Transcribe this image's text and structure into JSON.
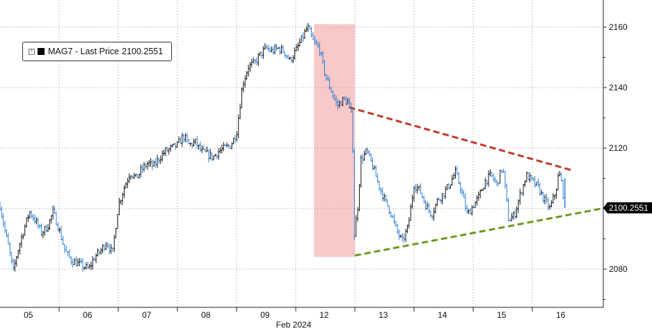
{
  "chart_data": {
    "type": "line",
    "series": [
      {
        "name": "MAG7 - Last Price"
      }
    ],
    "legend": {
      "name": "MAG7 - Last Price",
      "value": "2100.2551",
      "position": "top-left"
    },
    "last_price": 2100.2551,
    "last_price_label": "2100.2551",
    "ylim": [
      2065,
      2172
    ],
    "yticks": [
      2080,
      2100,
      2120,
      2140,
      2160
    ],
    "ytick_labels": [
      "2080",
      "2100",
      "2120",
      "2140",
      "2160"
    ],
    "x_range": [
      0,
      10.25
    ],
    "x_days": [
      {
        "label": "05",
        "start": 0
      },
      {
        "label": "06",
        "start": 1
      },
      {
        "label": "07",
        "start": 2
      },
      {
        "label": "08",
        "start": 3
      },
      {
        "label": "09",
        "start": 4
      },
      {
        "label": "12",
        "start": 5
      },
      {
        "label": "13",
        "start": 6
      },
      {
        "label": "14",
        "start": 7
      },
      {
        "label": "15",
        "start": 8
      },
      {
        "label": "16",
        "start": 9
      }
    ],
    "month_label": "Feb 2024",
    "grid": true,
    "highlight": {
      "x0": 5.31,
      "x1": 6.0,
      "color": "#f9c9c9"
    },
    "upper_trendline": {
      "x": [
        5.9,
        9.7
      ],
      "y": [
        2133.5,
        2112.5
      ],
      "color": "#c0392b"
    },
    "lower_trendline": {
      "x": [
        6.0,
        10.25
      ],
      "y": [
        2084.5,
        2100.3
      ],
      "color": "#6b9a1f"
    },
    "price_path": [
      [
        0.0,
        2101
      ],
      [
        0.08,
        2093
      ],
      [
        0.16,
        2086
      ],
      [
        0.22,
        2079
      ],
      [
        0.3,
        2086
      ],
      [
        0.4,
        2093
      ],
      [
        0.5,
        2099
      ],
      [
        0.6,
        2096
      ],
      [
        0.7,
        2092
      ],
      [
        0.8,
        2094
      ],
      [
        0.9,
        2099
      ],
      [
        1.0,
        2093
      ],
      [
        1.1,
        2086
      ],
      [
        1.2,
        2083
      ],
      [
        1.3,
        2082
      ],
      [
        1.4,
        2081
      ],
      [
        1.5,
        2080
      ],
      [
        1.6,
        2084
      ],
      [
        1.7,
        2086
      ],
      [
        1.8,
        2089
      ],
      [
        1.9,
        2085
      ],
      [
        2.0,
        2101
      ],
      [
        2.1,
        2107
      ],
      [
        2.2,
        2112
      ],
      [
        2.3,
        2110
      ],
      [
        2.4,
        2113
      ],
      [
        2.5,
        2115
      ],
      [
        2.6,
        2114
      ],
      [
        2.7,
        2117
      ],
      [
        2.8,
        2119
      ],
      [
        2.9,
        2120
      ],
      [
        3.0,
        2121
      ],
      [
        3.1,
        2124
      ],
      [
        3.2,
        2121
      ],
      [
        3.3,
        2122
      ],
      [
        3.4,
        2119
      ],
      [
        3.5,
        2118
      ],
      [
        3.6,
        2117
      ],
      [
        3.7,
        2119
      ],
      [
        3.8,
        2120
      ],
      [
        3.9,
        2121
      ],
      [
        4.0,
        2125
      ],
      [
        4.1,
        2141
      ],
      [
        4.2,
        2147
      ],
      [
        4.3,
        2148
      ],
      [
        4.4,
        2151
      ],
      [
        4.5,
        2153
      ],
      [
        4.6,
        2152
      ],
      [
        4.7,
        2153
      ],
      [
        4.8,
        2152
      ],
      [
        4.9,
        2149
      ],
      [
        5.0,
        2152
      ],
      [
        5.1,
        2156
      ],
      [
        5.2,
        2160
      ],
      [
        5.3,
        2155
      ],
      [
        5.4,
        2153
      ],
      [
        5.5,
        2144
      ],
      [
        5.6,
        2139
      ],
      [
        5.7,
        2134
      ],
      [
        5.8,
        2136
      ],
      [
        5.9,
        2135
      ],
      [
        5.96,
        2128
      ],
      [
        5.98,
        2089
      ],
      [
        6.0,
        2093
      ],
      [
        6.05,
        2101
      ],
      [
        6.1,
        2116
      ],
      [
        6.2,
        2119
      ],
      [
        6.3,
        2114
      ],
      [
        6.4,
        2108
      ],
      [
        6.5,
        2103
      ],
      [
        6.6,
        2099
      ],
      [
        6.7,
        2093
      ],
      [
        6.8,
        2089
      ],
      [
        6.9,
        2094
      ],
      [
        7.0,
        2108
      ],
      [
        7.1,
        2106
      ],
      [
        7.2,
        2101
      ],
      [
        7.3,
        2098
      ],
      [
        7.4,
        2103
      ],
      [
        7.5,
        2105
      ],
      [
        7.6,
        2108
      ],
      [
        7.7,
        2112
      ],
      [
        7.8,
        2106
      ],
      [
        7.9,
        2098
      ],
      [
        8.0,
        2101
      ],
      [
        8.1,
        2104
      ],
      [
        8.2,
        2109
      ],
      [
        8.3,
        2111
      ],
      [
        8.4,
        2108
      ],
      [
        8.5,
        2114
      ],
      [
        8.6,
        2096
      ],
      [
        8.7,
        2098
      ],
      [
        8.8,
        2105
      ],
      [
        8.9,
        2111
      ],
      [
        9.0,
        2109
      ],
      [
        9.1,
        2107
      ],
      [
        9.2,
        2103
      ],
      [
        9.3,
        2100
      ],
      [
        9.4,
        2106
      ],
      [
        9.45,
        2112
      ],
      [
        9.5,
        2108
      ],
      [
        9.55,
        2100.3
      ]
    ]
  }
}
